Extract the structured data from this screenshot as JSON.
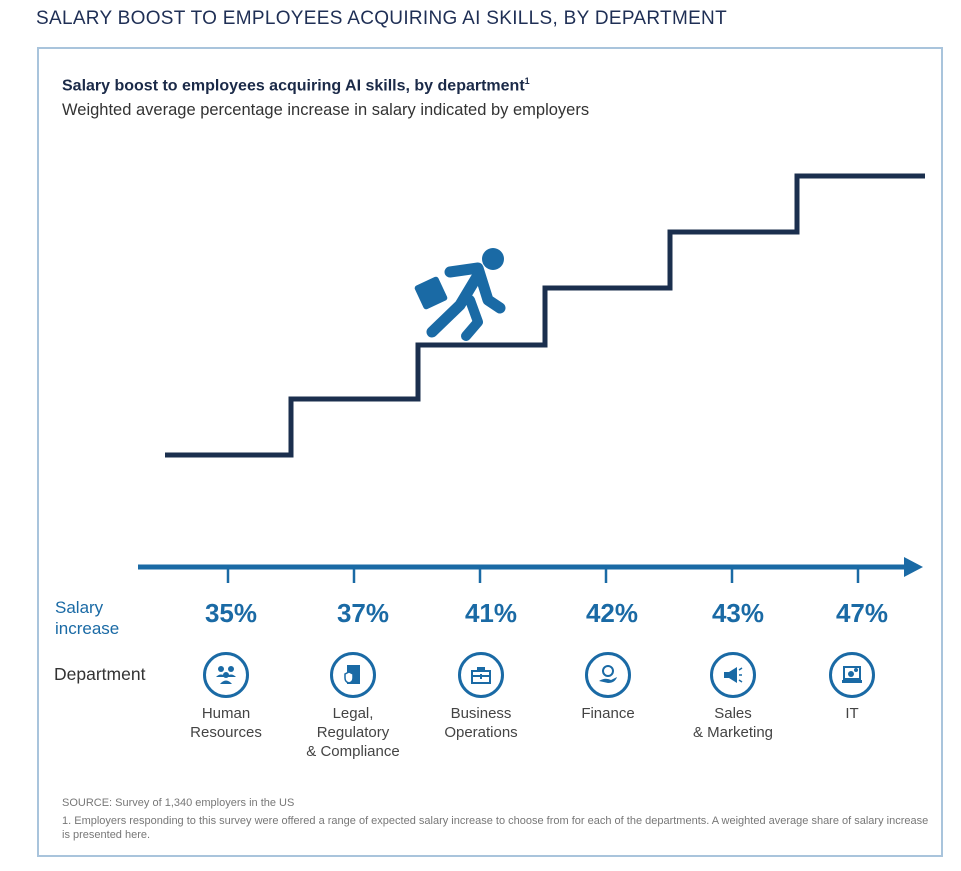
{
  "page_title": "SALARY BOOST TO EMPLOYEES ACQUIRING AI SKILLS, BY DEPARTMENT",
  "chart_data": {
    "type": "bar",
    "title": "Salary boost to employees acquiring AI skills, by department",
    "title_footnote_marker": "1",
    "subtitle": "Weighted average percentage increase in salary indicated by employers",
    "row_label_values": "Salary increase",
    "row_label_values_line1": "Salary",
    "row_label_values_line2": "increase",
    "row_label_categories": "Department",
    "categories": [
      "Human Resources",
      "Legal, Regulatory & Compliance",
      "Business Operations",
      "Finance",
      "Sales & Marketing",
      "IT"
    ],
    "category_lines": [
      [
        "Human",
        "Resources"
      ],
      [
        "Legal,",
        "Regulatory",
        "& Compliance"
      ],
      [
        "Business",
        "Operations"
      ],
      [
        "Finance"
      ],
      [
        "Sales",
        "& Marketing"
      ],
      [
        "IT"
      ]
    ],
    "values": [
      35,
      37,
      41,
      42,
      43,
      47
    ],
    "value_labels": [
      "35%",
      "37%",
      "41%",
      "42%",
      "43%",
      "47%"
    ],
    "icons": [
      "people-icon",
      "legal-document-shield-icon",
      "briefcase-icon",
      "hand-coin-icon",
      "megaphone-icon",
      "laptop-gear-icon"
    ]
  },
  "footer": {
    "source": "SOURCE: Survey of 1,340 employers in the US",
    "footnote": "1. Employers responding to this survey were offered a range of expected salary increase to choose from for each of the departments. A weighted average share of salary increase is presented here."
  },
  "colors": {
    "accent": "#1a6aa5",
    "navy": "#1b2f4e"
  }
}
